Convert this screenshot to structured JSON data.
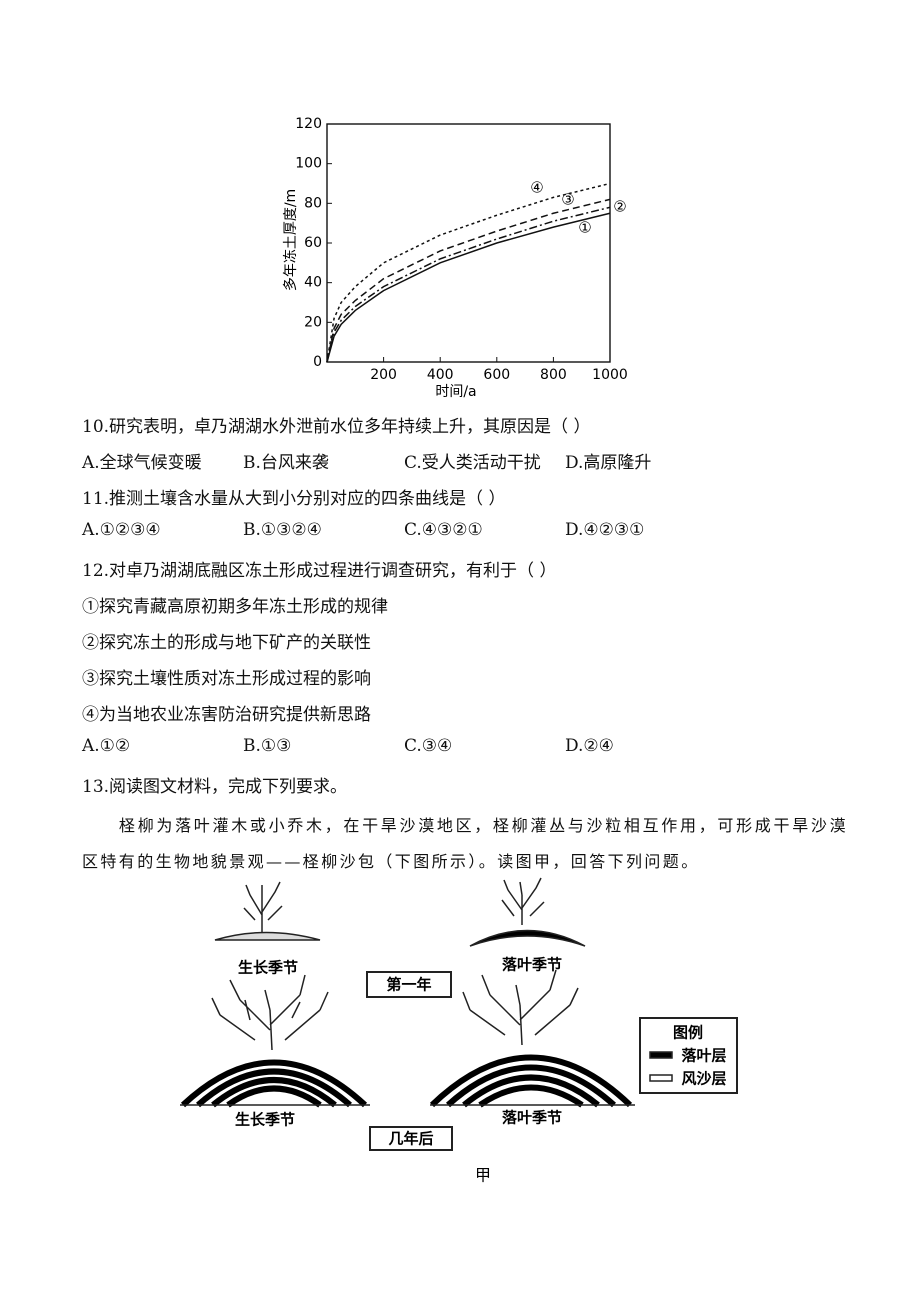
{
  "chart_data": {
    "type": "line",
    "y_label": "多年冻土厚度/m",
    "x_label": "时间/a",
    "x": [
      0,
      25,
      50,
      100,
      200,
      400,
      600,
      800,
      1000
    ],
    "series": [
      {
        "name": "①",
        "color": "#111",
        "line_style": "solid",
        "values": [
          0,
          13,
          19,
          26,
          36,
          50,
          60,
          68,
          75
        ]
      },
      {
        "name": "②",
        "color": "#111",
        "line_style": "dashdot",
        "values": [
          0,
          15,
          21,
          28,
          38,
          52,
          62,
          71,
          78
        ]
      },
      {
        "name": "③",
        "color": "#111",
        "line_style": "dashed",
        "values": [
          0,
          17,
          24,
          31,
          42,
          56,
          66,
          75,
          82
        ]
      },
      {
        "name": "④",
        "color": "#111",
        "line_style": "dotted",
        "values": [
          0,
          22,
          30,
          38,
          50,
          64,
          74,
          83,
          90
        ]
      }
    ],
    "xlim": [
      0,
      1000
    ],
    "xticks": [
      200,
      400,
      600,
      800,
      1000
    ],
    "ylim": [
      0,
      120
    ],
    "yticks": [
      0,
      20,
      40,
      60,
      80,
      100,
      120
    ]
  },
  "questions": [
    {
      "stem": "10.研究表明，卓乃湖湖水外泄前水位多年持续上升，其原因是（    ）",
      "options": [
        "A.全球气候变暖",
        "B.台风来袭",
        "C.受人类活动干扰",
        "D.高原隆升"
      ]
    },
    {
      "stem": "11.推测土壤含水量从大到小分别对应的四条曲线是（    ）",
      "options": [
        "A.①②③④",
        "B.①③②④",
        "C.④③②①",
        "D.④②③①"
      ]
    },
    {
      "stem": "12.对卓乃湖湖底融区冻土形成过程进行调查研究，有利于（    ）",
      "statements": [
        "①探究青藏高原初期多年冻土形成的规律",
        "②探究冻土的形成与地下矿产的关联性",
        "③探究土壤性质对冻土形成过程的影响",
        "④为当地农业冻害防治研究提供新思路"
      ],
      "options": [
        "A.①②",
        "B.①③",
        "C.③④",
        "D.②④"
      ]
    },
    {
      "stem": "13.阅读图文材料，完成下列要求。",
      "paragraph": "柽柳为落叶灌木或小乔木，在干旱沙漠地区，柽柳灌丛与沙粒相互作用，可形成干旱沙漠区特有的生物地貌景观——柽柳沙包（下图所示）。读图甲，回答下列问题。"
    }
  ],
  "figure": {
    "top_row": {
      "labels": [
        "生长季节",
        "落叶季节"
      ],
      "caption": "第一年"
    },
    "bottom_row": {
      "labels": [
        "生长季节",
        "落叶季节"
      ],
      "caption": "几年后"
    },
    "legend": {
      "title": "图例",
      "items": [
        "落叶层",
        "风沙层"
      ]
    },
    "caption": "甲"
  }
}
